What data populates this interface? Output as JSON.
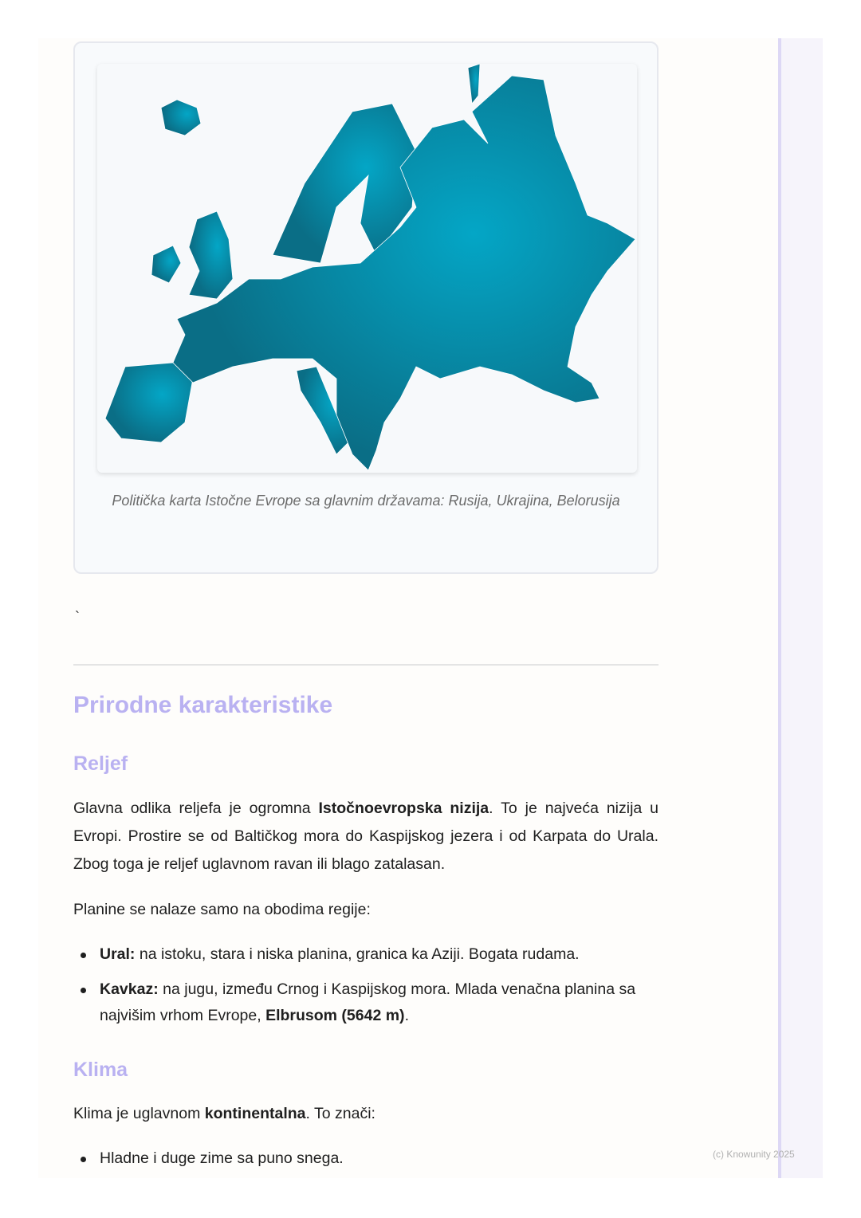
{
  "figure": {
    "caption": "Politička karta Istočne Evrope sa glavnim državama: Rusija, Ukrajina, Belorusija",
    "map_color": "#0a7d96",
    "map_highlight": "#04a6c6"
  },
  "stray_char": "`",
  "section": {
    "title": "Prirodne karakteristike",
    "relief": {
      "title": "Reljef",
      "p1_a": "Glavna odlika reljefa je ogromna ",
      "p1_b": "Istočnoevropska nizija",
      "p1_c": ". To je najveća nizija u Evropi. Prostire se od Baltičkog mora do Kaspijskog jezera i od Karpata do Urala. Zbog toga je reljef uglavnom ravan ili blago zatalasan.",
      "p2": "Planine se nalaze samo na obodima regije:",
      "items": [
        {
          "bold": "Ural:",
          "text": " na istoku, stara i niska planina, granica ka Aziji. Bogata rudama."
        },
        {
          "bold": "Kavkaz:",
          "text": " na jugu, između Crnog i Kaspijskog mora. Mlada venačna planina sa najvišim vrhom Evrope, ",
          "bold2": "Elbrusom (5642 m)",
          "end": "."
        }
      ]
    },
    "climate": {
      "title": "Klima",
      "p1_a": "Klima je uglavnom ",
      "p1_b": "kontinentalna",
      "p1_c": ". To znači:",
      "items": [
        "Hladne i duge zime sa puno snega."
      ]
    }
  },
  "footer": "(c) Knowunity 2025",
  "colors": {
    "heading": "#b9b1f1",
    "sidebar_border": "#ddd8f5"
  }
}
